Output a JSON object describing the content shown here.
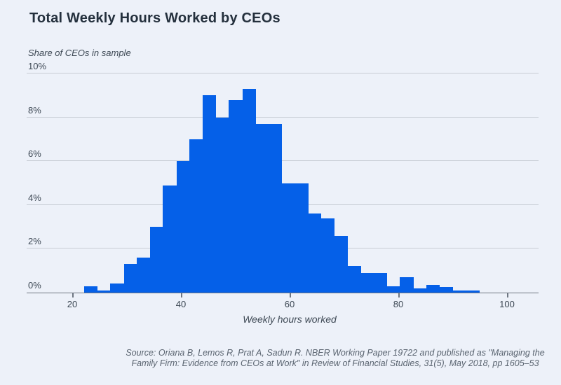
{
  "header": {
    "title": "Total Weekly Hours Worked by CEOs"
  },
  "chart_data": {
    "type": "bar",
    "subtype": "histogram",
    "title": "Total Weekly Hours Worked by CEOs",
    "ylabel": "Share of CEOs in sample",
    "xlabel": "Weekly hours worked",
    "x_ticks": [
      20,
      40,
      60,
      80,
      100
    ],
    "y_ticks": [
      "0%",
      "2%",
      "4%",
      "6%",
      "8%",
      "10%"
    ],
    "y_tick_values": [
      0,
      2,
      4,
      6,
      8,
      10
    ],
    "ylim": [
      0,
      10
    ],
    "xlim": [
      11.6,
      105.8
    ],
    "grid": "horizontal",
    "legend": "none",
    "bin_edges": [
      22.2,
      24.6,
      27.0,
      29.5,
      31.9,
      34.3,
      36.7,
      39.2,
      41.6,
      44.0,
      46.4,
      48.8,
      51.3,
      53.7,
      56.1,
      58.5,
      61.0,
      63.4,
      65.8,
      68.2,
      70.6,
      73.1,
      75.5,
      77.9,
      80.3,
      82.8,
      85.2,
      87.6,
      90.0,
      92.4,
      94.9
    ],
    "values": [
      0.3,
      0.1,
      0.4,
      1.3,
      1.6,
      3.0,
      4.9,
      6.0,
      7.0,
      9.0,
      8.0,
      8.8,
      9.3,
      7.7,
      7.7,
      5.0,
      5.0,
      3.6,
      3.4,
      2.6,
      1.2,
      0.9,
      0.9,
      0.3,
      0.7,
      0.2,
      0.35,
      0.25,
      0.1,
      0.1
    ],
    "values_unit": "% of CEOs in sample"
  },
  "source": {
    "lines": [
      "Source: Oriana B, Lemos R, Prat A, Sadun R. NBER Working Paper 19722 and published as \"Managing the",
      "Family Firm: Evidence from CEOs at Work\" in Review of Financial Studies, 31(5), May 2018, pp 1605–53"
    ]
  },
  "colors": {
    "background": "#edf1f9",
    "bar": "#0560e8",
    "title": "#24303d",
    "text": "#3d4854",
    "grid": "#c8cdd5",
    "axis": "#6e7682",
    "source": "#5a6470"
  }
}
